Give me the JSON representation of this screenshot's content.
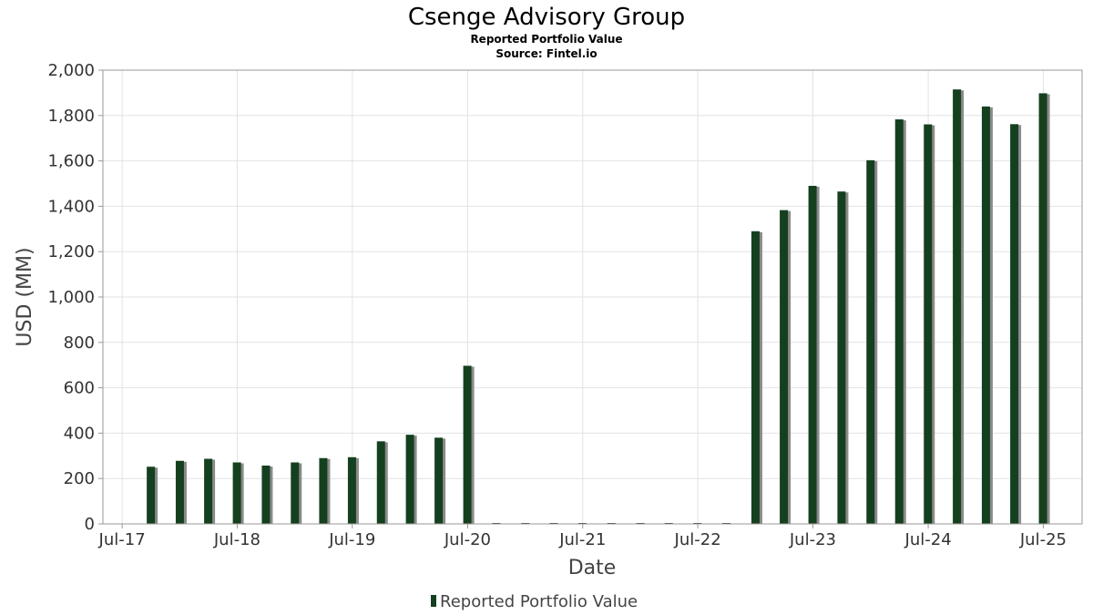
{
  "chart_data": {
    "type": "bar",
    "title": "Csenge Advisory Group",
    "subtitles": [
      "Reported Portfolio Value",
      "Source: Fintel.io"
    ],
    "xlabel": "Date",
    "ylabel": "USD (MM)",
    "ylim": [
      0,
      2000
    ],
    "yticks": [
      0,
      200,
      400,
      600,
      800,
      1000,
      1200,
      1400,
      1600,
      1800,
      2000
    ],
    "ytick_labels": [
      "0",
      "200",
      "400",
      "600",
      "800",
      "1,000",
      "1,200",
      "1,400",
      "1,600",
      "1,800",
      "2,000"
    ],
    "xlim": [
      "2017-05-01",
      "2025-11-01"
    ],
    "xticks": [
      {
        "date": "2017-07-01",
        "label": "Jul-17"
      },
      {
        "date": "2018-07-01",
        "label": "Jul-18"
      },
      {
        "date": "2019-07-01",
        "label": "Jul-19"
      },
      {
        "date": "2020-07-01",
        "label": "Jul-20"
      },
      {
        "date": "2021-07-01",
        "label": "Jul-21"
      },
      {
        "date": "2022-07-01",
        "label": "Jul-22"
      },
      {
        "date": "2023-07-01",
        "label": "Jul-23"
      },
      {
        "date": "2024-07-01",
        "label": "Jul-24"
      },
      {
        "date": "2025-07-01",
        "label": "Jul-25"
      }
    ],
    "grid": true,
    "legend": "bottom-center",
    "series": [
      {
        "name": "Reported Portfolio Value",
        "color": "#15401f",
        "shadow_color": "#8a8a8a",
        "points": [
          {
            "date": "2017-09-30",
            "value": 252
          },
          {
            "date": "2017-12-31",
            "value": 278
          },
          {
            "date": "2018-03-31",
            "value": 287
          },
          {
            "date": "2018-06-30",
            "value": 271
          },
          {
            "date": "2018-09-30",
            "value": 257
          },
          {
            "date": "2018-12-31",
            "value": 271
          },
          {
            "date": "2019-03-31",
            "value": 290
          },
          {
            "date": "2019-06-30",
            "value": 294
          },
          {
            "date": "2019-09-30",
            "value": 364
          },
          {
            "date": "2019-12-31",
            "value": 393
          },
          {
            "date": "2020-03-31",
            "value": 380
          },
          {
            "date": "2020-06-30",
            "value": 697
          },
          {
            "date": "2020-09-30",
            "value": 0
          },
          {
            "date": "2020-12-31",
            "value": 0
          },
          {
            "date": "2021-03-31",
            "value": 0
          },
          {
            "date": "2021-06-30",
            "value": 0
          },
          {
            "date": "2021-09-30",
            "value": 0
          },
          {
            "date": "2021-12-31",
            "value": 0
          },
          {
            "date": "2022-03-31",
            "value": 0
          },
          {
            "date": "2022-06-30",
            "value": 0
          },
          {
            "date": "2022-09-30",
            "value": 0
          },
          {
            "date": "2022-12-31",
            "value": 1290
          },
          {
            "date": "2023-03-31",
            "value": 1383
          },
          {
            "date": "2023-06-30",
            "value": 1490
          },
          {
            "date": "2023-09-30",
            "value": 1465
          },
          {
            "date": "2023-12-31",
            "value": 1603
          },
          {
            "date": "2024-03-31",
            "value": 1783
          },
          {
            "date": "2024-06-30",
            "value": 1761
          },
          {
            "date": "2024-09-30",
            "value": 1915
          },
          {
            "date": "2024-12-31",
            "value": 1840
          },
          {
            "date": "2025-03-31",
            "value": 1762
          },
          {
            "date": "2025-06-30",
            "value": 1898
          }
        ]
      }
    ]
  }
}
